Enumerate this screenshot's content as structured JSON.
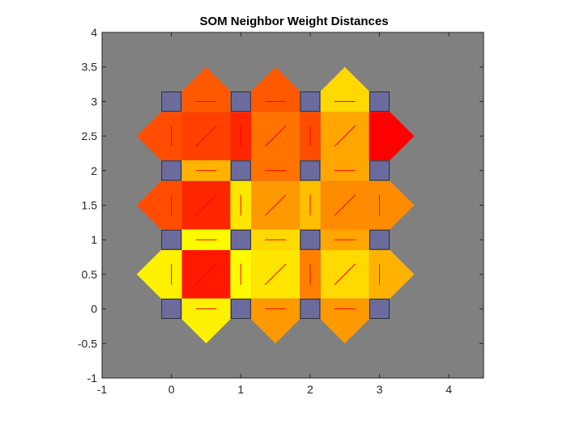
{
  "chart_data": {
    "type": "heatmap",
    "title": "SOM Neighbor Weight Distances",
    "xlabel": "",
    "ylabel": "",
    "xlim": [
      -1,
      4.5
    ],
    "ylim": [
      -1,
      4
    ],
    "x_ticks": [
      -1,
      0,
      1,
      2,
      3,
      4
    ],
    "x_tick_labels": [
      "-1",
      "0",
      "1",
      "2",
      "3",
      "4"
    ],
    "y_ticks": [
      -1,
      -0.5,
      0,
      0.5,
      1,
      1.5,
      2,
      2.5,
      3,
      3.5,
      4
    ],
    "y_tick_labels": [
      "-1",
      "-0.5",
      "0",
      "0.5",
      "1",
      "1.5",
      "2",
      "2.5",
      "3",
      "3.5",
      "4"
    ],
    "grid": false,
    "colormap": "hot (red = far, yellow = near)",
    "colors": {
      "axes_background": "#808080",
      "neuron": "#6b6b9e",
      "edge_line": "#ff0000",
      "near": "#ffff00",
      "far": "#ff0000"
    },
    "neurons": [
      [
        0,
        0
      ],
      [
        1,
        0
      ],
      [
        2,
        0
      ],
      [
        3,
        0
      ],
      [
        0,
        1
      ],
      [
        1,
        1
      ],
      [
        2,
        1
      ],
      [
        3,
        1
      ],
      [
        0,
        2
      ],
      [
        1,
        2
      ],
      [
        2,
        2
      ],
      [
        3,
        2
      ],
      [
        0,
        3
      ],
      [
        1,
        3
      ],
      [
        2,
        3
      ],
      [
        3,
        3
      ]
    ],
    "horizontal_distances": [
      [
        0.05,
        0.4,
        0.4
      ],
      [
        0.02,
        0.15,
        0.35
      ],
      [
        0.3,
        0.55,
        0.35
      ],
      [
        0.65,
        0.65,
        0.15
      ]
    ],
    "vertical_distances": [
      [
        0.05,
        0.02,
        0.5,
        0.3
      ],
      [
        0.7,
        0.1,
        0.25,
        0.45
      ],
      [
        0.7,
        0.85,
        0.7,
        1.0
      ]
    ],
    "diagonal_distances": [
      [
        0.9,
        0.1,
        0.15
      ],
      [
        0.85,
        0.4,
        0.45
      ],
      [
        0.75,
        0.55,
        0.35
      ]
    ]
  }
}
